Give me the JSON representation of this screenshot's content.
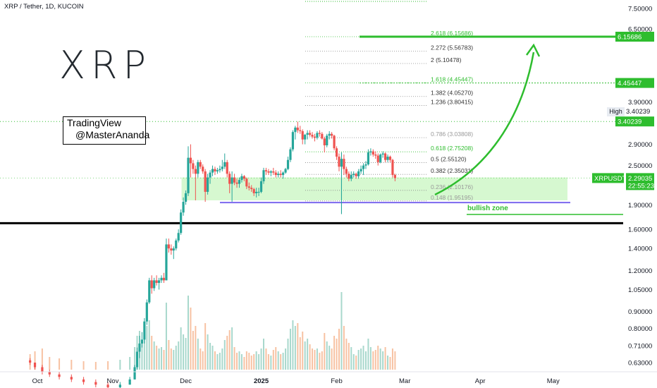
{
  "header": {
    "title": "XRP / Tether, 1D, KUCOIN"
  },
  "logo": {
    "text": "XRP"
  },
  "watermark": {
    "line1": "TradingView",
    "line2": "@MasterAnanda"
  },
  "high": {
    "label": "High",
    "value": "3.40239"
  },
  "symbol_tag": {
    "name": "XRPUSDT",
    "price": "2.29035",
    "countdown": "22:55:23"
  },
  "annotations": {
    "bullish_zone": "bullish zone"
  },
  "colors": {
    "up": "#26a69a",
    "green_line": "#2ebd2e",
    "down": "#ef5350",
    "zone": "#c8f5c0",
    "support": "#7b68ee",
    "black_line": "#000000"
  },
  "chart_data": {
    "type": "candlestick",
    "title": "XRP / Tether, 1D, KUCOIN",
    "y_scale": "log",
    "ylim": [
      0.6,
      7.7
    ],
    "y_ticks": [
      "7.50000",
      "6.50000",
      "3.90000",
      "2.90000",
      "2.50000",
      "1.90000",
      "1.60000",
      "1.40000",
      "1.20000",
      "1.05000",
      "0.90000",
      "0.80000",
      "0.71000",
      "0.63000"
    ],
    "y_tick_values": [
      7.5,
      6.5,
      3.9,
      2.9,
      2.5,
      1.9,
      1.6,
      1.4,
      1.2,
      1.05,
      0.9,
      0.8,
      0.71,
      0.63
    ],
    "x_labels": [
      "Oct",
      "Nov",
      "Dec",
      "2025",
      "Feb",
      "Mar",
      "Apr",
      "May"
    ],
    "x_label_dates": [
      "2024-10-01",
      "2024-11-01",
      "2024-12-01",
      "2025-01-01",
      "2025-02-01",
      "2025-03-01",
      "2025-04-01",
      "2025-05-01"
    ],
    "fib_levels": [
      {
        "label": "2.618 (6.15686)",
        "value": 6.15686
      },
      {
        "label": "2.272 (5.56783)",
        "value": 5.56783
      },
      {
        "label": "2 (5.10478)",
        "value": 5.10478
      },
      {
        "label": "1.618 (4.45447)",
        "value": 4.45447
      },
      {
        "label": "1.382 (4.05270)",
        "value": 4.0527
      },
      {
        "label": "1.236 (3.80415)",
        "value": 3.80415
      },
      {
        "label": "0.786 (3.03808)",
        "value": 3.03808
      },
      {
        "label": "0.618 (2.75208)",
        "value": 2.75208
      },
      {
        "label": "0.5 (2.55120)",
        "value": 2.5512
      },
      {
        "label": "0.382 (2.35031)",
        "value": 2.35031
      },
      {
        "label": "0.236 (2.10176)",
        "value": 2.10176
      },
      {
        "label": "0.148 (1.95195)",
        "value": 1.95195
      }
    ],
    "price_tags": [
      {
        "value": 6.15686,
        "text": "6.15686"
      },
      {
        "value": 4.45447,
        "text": "4.45447"
      },
      {
        "value": 3.40239,
        "text": "3.40239"
      }
    ],
    "support_line": 1.93,
    "black_line": 1.67,
    "bullish_zone": {
      "from": 1.96,
      "to": 2.3
    },
    "last_price": 2.29035,
    "target": 6.15686,
    "series": [
      {
        "date": "2024-09-28",
        "o": 0.64,
        "h": 0.65,
        "l": 0.62,
        "c": 0.63,
        "v": 22
      },
      {
        "date": "2024-09-30",
        "o": 0.63,
        "h": 0.63,
        "l": 0.6,
        "c": 0.61,
        "v": 26
      },
      {
        "date": "2024-10-03",
        "o": 0.61,
        "h": 0.62,
        "l": 0.58,
        "c": 0.59,
        "v": 30
      },
      {
        "date": "2024-10-06",
        "o": 0.59,
        "h": 0.6,
        "l": 0.57,
        "c": 0.58,
        "v": 18
      },
      {
        "date": "2024-10-10",
        "o": 0.58,
        "h": 0.59,
        "l": 0.56,
        "c": 0.57,
        "v": 16
      },
      {
        "date": "2024-10-15",
        "o": 0.57,
        "h": 0.58,
        "l": 0.55,
        "c": 0.56,
        "v": 14
      },
      {
        "date": "2024-10-20",
        "o": 0.56,
        "h": 0.57,
        "l": 0.54,
        "c": 0.55,
        "v": 12
      },
      {
        "date": "2024-10-25",
        "o": 0.55,
        "h": 0.56,
        "l": 0.53,
        "c": 0.54,
        "v": 11
      },
      {
        "date": "2024-10-30",
        "o": 0.54,
        "h": 0.55,
        "l": 0.52,
        "c": 0.53,
        "v": 12
      },
      {
        "date": "2024-11-04",
        "o": 0.53,
        "h": 0.55,
        "l": 0.52,
        "c": 0.54,
        "v": 14
      },
      {
        "date": "2024-11-08",
        "o": 0.54,
        "h": 0.57,
        "l": 0.54,
        "c": 0.56,
        "v": 18
      },
      {
        "date": "2024-11-10",
        "o": 0.56,
        "h": 0.62,
        "l": 0.56,
        "c": 0.61,
        "v": 32
      },
      {
        "date": "2024-11-11",
        "o": 0.61,
        "h": 0.7,
        "l": 0.6,
        "c": 0.68,
        "v": 48
      },
      {
        "date": "2024-11-12",
        "o": 0.68,
        "h": 0.76,
        "l": 0.65,
        "c": 0.72,
        "v": 55
      },
      {
        "date": "2024-11-13",
        "o": 0.72,
        "h": 0.78,
        "l": 0.7,
        "c": 0.74,
        "v": 40
      },
      {
        "date": "2024-11-14",
        "o": 0.74,
        "h": 0.86,
        "l": 0.72,
        "c": 0.84,
        "v": 52
      },
      {
        "date": "2024-11-15",
        "o": 0.84,
        "h": 0.98,
        "l": 0.82,
        "c": 0.96,
        "v": 62
      },
      {
        "date": "2024-11-16",
        "o": 0.96,
        "h": 1.14,
        "l": 0.95,
        "c": 1.12,
        "v": 70
      },
      {
        "date": "2024-11-17",
        "o": 1.12,
        "h": 1.16,
        "l": 1.02,
        "c": 1.06,
        "v": 48
      },
      {
        "date": "2024-11-18",
        "o": 1.06,
        "h": 1.14,
        "l": 1.04,
        "c": 1.12,
        "v": 40
      },
      {
        "date": "2024-11-19",
        "o": 1.12,
        "h": 1.16,
        "l": 1.08,
        "c": 1.1,
        "v": 34
      },
      {
        "date": "2024-11-20",
        "o": 1.1,
        "h": 1.14,
        "l": 1.05,
        "c": 1.12,
        "v": 30
      },
      {
        "date": "2024-11-21",
        "o": 1.12,
        "h": 1.16,
        "l": 1.1,
        "c": 1.14,
        "v": 32
      },
      {
        "date": "2024-11-22",
        "o": 1.14,
        "h": 1.18,
        "l": 1.1,
        "c": 1.12,
        "v": 28
      },
      {
        "date": "2024-11-23",
        "o": 1.12,
        "h": 1.5,
        "l": 1.12,
        "c": 1.44,
        "v": 95
      },
      {
        "date": "2024-11-24",
        "o": 1.44,
        "h": 1.5,
        "l": 1.36,
        "c": 1.4,
        "v": 42
      },
      {
        "date": "2024-11-25",
        "o": 1.4,
        "h": 1.44,
        "l": 1.34,
        "c": 1.38,
        "v": 30
      },
      {
        "date": "2024-11-26",
        "o": 1.38,
        "h": 1.42,
        "l": 1.3,
        "c": 1.4,
        "v": 28
      },
      {
        "date": "2024-11-27",
        "o": 1.4,
        "h": 1.5,
        "l": 1.38,
        "c": 1.48,
        "v": 34
      },
      {
        "date": "2024-11-28",
        "o": 1.48,
        "h": 1.6,
        "l": 1.46,
        "c": 1.56,
        "v": 40
      },
      {
        "date": "2024-11-29",
        "o": 1.56,
        "h": 1.84,
        "l": 1.54,
        "c": 1.8,
        "v": 60
      },
      {
        "date": "2024-11-30",
        "o": 1.8,
        "h": 2.0,
        "l": 1.76,
        "c": 1.94,
        "v": 50
      },
      {
        "date": "2024-12-01",
        "o": 1.94,
        "h": 2.1,
        "l": 1.9,
        "c": 2.06,
        "v": 45
      },
      {
        "date": "2024-12-02",
        "o": 2.06,
        "h": 2.86,
        "l": 2.02,
        "c": 2.64,
        "v": 105
      },
      {
        "date": "2024-12-03",
        "o": 2.64,
        "h": 2.9,
        "l": 2.3,
        "c": 2.54,
        "v": 88
      },
      {
        "date": "2024-12-04",
        "o": 2.54,
        "h": 2.6,
        "l": 2.36,
        "c": 2.44,
        "v": 55
      },
      {
        "date": "2024-12-05",
        "o": 2.44,
        "h": 2.5,
        "l": 1.96,
        "c": 2.36,
        "v": 62
      },
      {
        "date": "2024-12-06",
        "o": 2.36,
        "h": 2.6,
        "l": 2.3,
        "c": 2.56,
        "v": 44
      },
      {
        "date": "2024-12-07",
        "o": 2.56,
        "h": 2.6,
        "l": 2.44,
        "c": 2.48,
        "v": 30
      },
      {
        "date": "2024-12-08",
        "o": 2.48,
        "h": 2.52,
        "l": 2.36,
        "c": 2.4,
        "v": 26
      },
      {
        "date": "2024-12-09",
        "o": 2.4,
        "h": 2.44,
        "l": 1.94,
        "c": 2.08,
        "v": 66
      },
      {
        "date": "2024-12-10",
        "o": 2.08,
        "h": 2.36,
        "l": 2.04,
        "c": 2.3,
        "v": 50
      },
      {
        "date": "2024-12-11",
        "o": 2.3,
        "h": 2.42,
        "l": 2.2,
        "c": 2.38,
        "v": 38
      },
      {
        "date": "2024-12-12",
        "o": 2.38,
        "h": 2.5,
        "l": 2.32,
        "c": 2.44,
        "v": 34
      },
      {
        "date": "2024-12-13",
        "o": 2.44,
        "h": 2.48,
        "l": 2.34,
        "c": 2.4,
        "v": 26
      },
      {
        "date": "2024-12-14",
        "o": 2.4,
        "h": 2.46,
        "l": 2.36,
        "c": 2.42,
        "v": 22
      },
      {
        "date": "2024-12-15",
        "o": 2.42,
        "h": 2.5,
        "l": 2.38,
        "c": 2.44,
        "v": 24
      },
      {
        "date": "2024-12-16",
        "o": 2.44,
        "h": 2.6,
        "l": 2.4,
        "c": 2.48,
        "v": 30
      },
      {
        "date": "2024-12-17",
        "o": 2.48,
        "h": 2.72,
        "l": 2.44,
        "c": 2.56,
        "v": 42
      },
      {
        "date": "2024-12-18",
        "o": 2.56,
        "h": 2.6,
        "l": 2.3,
        "c": 2.36,
        "v": 48
      },
      {
        "date": "2024-12-19",
        "o": 2.36,
        "h": 2.4,
        "l": 2.06,
        "c": 2.2,
        "v": 56
      },
      {
        "date": "2024-12-20",
        "o": 2.2,
        "h": 2.4,
        "l": 1.94,
        "c": 2.3,
        "v": 60
      },
      {
        "date": "2024-12-21",
        "o": 2.3,
        "h": 2.36,
        "l": 2.18,
        "c": 2.22,
        "v": 32
      },
      {
        "date": "2024-12-22",
        "o": 2.22,
        "h": 2.28,
        "l": 2.14,
        "c": 2.2,
        "v": 24
      },
      {
        "date": "2024-12-23",
        "o": 2.2,
        "h": 2.3,
        "l": 2.14,
        "c": 2.26,
        "v": 26
      },
      {
        "date": "2024-12-24",
        "o": 2.26,
        "h": 2.36,
        "l": 2.22,
        "c": 2.32,
        "v": 22
      },
      {
        "date": "2024-12-25",
        "o": 2.32,
        "h": 2.34,
        "l": 2.24,
        "c": 2.28,
        "v": 18
      },
      {
        "date": "2024-12-26",
        "o": 2.28,
        "h": 2.3,
        "l": 2.12,
        "c": 2.16,
        "v": 26
      },
      {
        "date": "2024-12-27",
        "o": 2.16,
        "h": 2.22,
        "l": 2.1,
        "c": 2.14,
        "v": 24
      },
      {
        "date": "2024-12-28",
        "o": 2.14,
        "h": 2.18,
        "l": 2.08,
        "c": 2.12,
        "v": 20
      },
      {
        "date": "2024-12-29",
        "o": 2.12,
        "h": 2.14,
        "l": 2.02,
        "c": 2.06,
        "v": 22
      },
      {
        "date": "2024-12-30",
        "o": 2.06,
        "h": 2.14,
        "l": 2.0,
        "c": 2.08,
        "v": 26
      },
      {
        "date": "2024-12-31",
        "o": 2.08,
        "h": 2.14,
        "l": 2.02,
        "c": 2.08,
        "v": 22
      },
      {
        "date": "2025-01-01",
        "o": 2.08,
        "h": 2.3,
        "l": 2.06,
        "c": 2.24,
        "v": 30
      },
      {
        "date": "2025-01-02",
        "o": 2.24,
        "h": 2.46,
        "l": 2.2,
        "c": 2.42,
        "v": 44
      },
      {
        "date": "2025-01-03",
        "o": 2.42,
        "h": 2.46,
        "l": 2.34,
        "c": 2.4,
        "v": 30
      },
      {
        "date": "2025-01-04",
        "o": 2.4,
        "h": 2.44,
        "l": 2.34,
        "c": 2.38,
        "v": 22
      },
      {
        "date": "2025-01-05",
        "o": 2.38,
        "h": 2.42,
        "l": 2.32,
        "c": 2.4,
        "v": 20
      },
      {
        "date": "2025-01-06",
        "o": 2.4,
        "h": 2.46,
        "l": 2.34,
        "c": 2.38,
        "v": 28
      },
      {
        "date": "2025-01-07",
        "o": 2.38,
        "h": 2.42,
        "l": 2.3,
        "c": 2.34,
        "v": 32
      },
      {
        "date": "2025-01-08",
        "o": 2.34,
        "h": 2.4,
        "l": 2.3,
        "c": 2.36,
        "v": 26
      },
      {
        "date": "2025-01-09",
        "o": 2.36,
        "h": 2.42,
        "l": 2.3,
        "c": 2.34,
        "v": 22
      },
      {
        "date": "2025-01-10",
        "o": 2.34,
        "h": 2.4,
        "l": 2.28,
        "c": 2.38,
        "v": 24
      },
      {
        "date": "2025-01-11",
        "o": 2.38,
        "h": 2.46,
        "l": 2.36,
        "c": 2.44,
        "v": 30
      },
      {
        "date": "2025-01-12",
        "o": 2.44,
        "h": 2.66,
        "l": 2.42,
        "c": 2.6,
        "v": 44
      },
      {
        "date": "2025-01-13",
        "o": 2.6,
        "h": 2.84,
        "l": 2.56,
        "c": 2.8,
        "v": 58
      },
      {
        "date": "2025-01-14",
        "o": 2.8,
        "h": 3.2,
        "l": 2.76,
        "c": 3.16,
        "v": 70
      },
      {
        "date": "2025-01-15",
        "o": 3.16,
        "h": 3.3,
        "l": 3.0,
        "c": 3.26,
        "v": 62
      },
      {
        "date": "2025-01-16",
        "o": 3.26,
        "h": 3.4,
        "l": 3.14,
        "c": 3.2,
        "v": 66
      },
      {
        "date": "2025-01-17",
        "o": 3.2,
        "h": 3.3,
        "l": 3.12,
        "c": 3.18,
        "v": 46
      },
      {
        "date": "2025-01-18",
        "o": 3.18,
        "h": 3.22,
        "l": 2.9,
        "c": 3.0,
        "v": 54
      },
      {
        "date": "2025-01-19",
        "o": 3.0,
        "h": 3.12,
        "l": 2.9,
        "c": 3.1,
        "v": 40
      },
      {
        "date": "2025-01-20",
        "o": 3.1,
        "h": 3.2,
        "l": 3.0,
        "c": 3.14,
        "v": 44
      },
      {
        "date": "2025-01-21",
        "o": 3.14,
        "h": 3.2,
        "l": 3.06,
        "c": 3.1,
        "v": 36
      },
      {
        "date": "2025-01-22",
        "o": 3.1,
        "h": 3.16,
        "l": 3.02,
        "c": 3.06,
        "v": 30
      },
      {
        "date": "2025-01-23",
        "o": 3.06,
        "h": 3.12,
        "l": 2.96,
        "c": 3.04,
        "v": 28
      },
      {
        "date": "2025-01-24",
        "o": 3.04,
        "h": 3.18,
        "l": 3.0,
        "c": 3.14,
        "v": 30
      },
      {
        "date": "2025-01-25",
        "o": 3.14,
        "h": 3.2,
        "l": 3.06,
        "c": 3.12,
        "v": 24
      },
      {
        "date": "2025-01-26",
        "o": 3.12,
        "h": 3.16,
        "l": 3.0,
        "c": 3.02,
        "v": 26
      },
      {
        "date": "2025-01-27",
        "o": 3.02,
        "h": 3.06,
        "l": 2.74,
        "c": 2.88,
        "v": 52
      },
      {
        "date": "2025-01-28",
        "o": 2.88,
        "h": 3.12,
        "l": 2.84,
        "c": 3.08,
        "v": 40
      },
      {
        "date": "2025-01-29",
        "o": 3.08,
        "h": 3.18,
        "l": 3.0,
        "c": 3.12,
        "v": 34
      },
      {
        "date": "2025-01-30",
        "o": 3.12,
        "h": 3.16,
        "l": 3.02,
        "c": 3.08,
        "v": 30
      },
      {
        "date": "2025-01-31",
        "o": 3.08,
        "h": 3.1,
        "l": 2.78,
        "c": 2.82,
        "v": 48
      },
      {
        "date": "2025-02-01",
        "o": 2.82,
        "h": 2.86,
        "l": 2.6,
        "c": 2.66,
        "v": 44
      },
      {
        "date": "2025-02-02",
        "o": 2.66,
        "h": 2.72,
        "l": 2.4,
        "c": 2.48,
        "v": 58
      },
      {
        "date": "2025-02-03",
        "o": 2.48,
        "h": 2.74,
        "l": 1.78,
        "c": 2.62,
        "v": 110
      },
      {
        "date": "2025-02-04",
        "o": 2.62,
        "h": 2.7,
        "l": 2.34,
        "c": 2.44,
        "v": 62
      },
      {
        "date": "2025-02-05",
        "o": 2.44,
        "h": 2.48,
        "l": 2.3,
        "c": 2.36,
        "v": 44
      },
      {
        "date": "2025-02-06",
        "o": 2.36,
        "h": 2.4,
        "l": 2.24,
        "c": 2.28,
        "v": 38
      },
      {
        "date": "2025-02-07",
        "o": 2.28,
        "h": 2.4,
        "l": 2.24,
        "c": 2.34,
        "v": 32
      },
      {
        "date": "2025-02-08",
        "o": 2.34,
        "h": 2.4,
        "l": 2.3,
        "c": 2.36,
        "v": 22
      },
      {
        "date": "2025-02-09",
        "o": 2.36,
        "h": 2.38,
        "l": 2.28,
        "c": 2.32,
        "v": 20
      },
      {
        "date": "2025-02-10",
        "o": 2.32,
        "h": 2.44,
        "l": 2.28,
        "c": 2.4,
        "v": 28
      },
      {
        "date": "2025-02-11",
        "o": 2.4,
        "h": 2.5,
        "l": 2.36,
        "c": 2.44,
        "v": 30
      },
      {
        "date": "2025-02-12",
        "o": 2.44,
        "h": 2.54,
        "l": 2.34,
        "c": 2.5,
        "v": 34
      },
      {
        "date": "2025-02-13",
        "o": 2.5,
        "h": 2.58,
        "l": 2.44,
        "c": 2.52,
        "v": 26
      },
      {
        "date": "2025-02-14",
        "o": 2.52,
        "h": 2.8,
        "l": 2.5,
        "c": 2.74,
        "v": 44
      },
      {
        "date": "2025-02-15",
        "o": 2.74,
        "h": 2.82,
        "l": 2.68,
        "c": 2.76,
        "v": 32
      },
      {
        "date": "2025-02-16",
        "o": 2.76,
        "h": 2.8,
        "l": 2.66,
        "c": 2.7,
        "v": 26
      },
      {
        "date": "2025-02-17",
        "o": 2.7,
        "h": 2.76,
        "l": 2.62,
        "c": 2.68,
        "v": 28
      },
      {
        "date": "2025-02-18",
        "o": 2.68,
        "h": 2.72,
        "l": 2.5,
        "c": 2.56,
        "v": 34
      },
      {
        "date": "2025-02-19",
        "o": 2.56,
        "h": 2.72,
        "l": 2.54,
        "c": 2.7,
        "v": 30
      },
      {
        "date": "2025-02-20",
        "o": 2.7,
        "h": 2.76,
        "l": 2.64,
        "c": 2.72,
        "v": 26
      },
      {
        "date": "2025-02-21",
        "o": 2.72,
        "h": 2.74,
        "l": 2.56,
        "c": 2.6,
        "v": 32
      },
      {
        "date": "2025-02-22",
        "o": 2.6,
        "h": 2.7,
        "l": 2.56,
        "c": 2.66,
        "v": 20
      },
      {
        "date": "2025-02-23",
        "o": 2.66,
        "h": 2.68,
        "l": 2.56,
        "c": 2.6,
        "v": 18
      },
      {
        "date": "2025-02-24",
        "o": 2.6,
        "h": 2.62,
        "l": 2.3,
        "c": 2.34,
        "v": 30
      },
      {
        "date": "2025-02-25",
        "o": 2.34,
        "h": 2.36,
        "l": 2.24,
        "c": 2.29,
        "v": 26
      }
    ]
  }
}
